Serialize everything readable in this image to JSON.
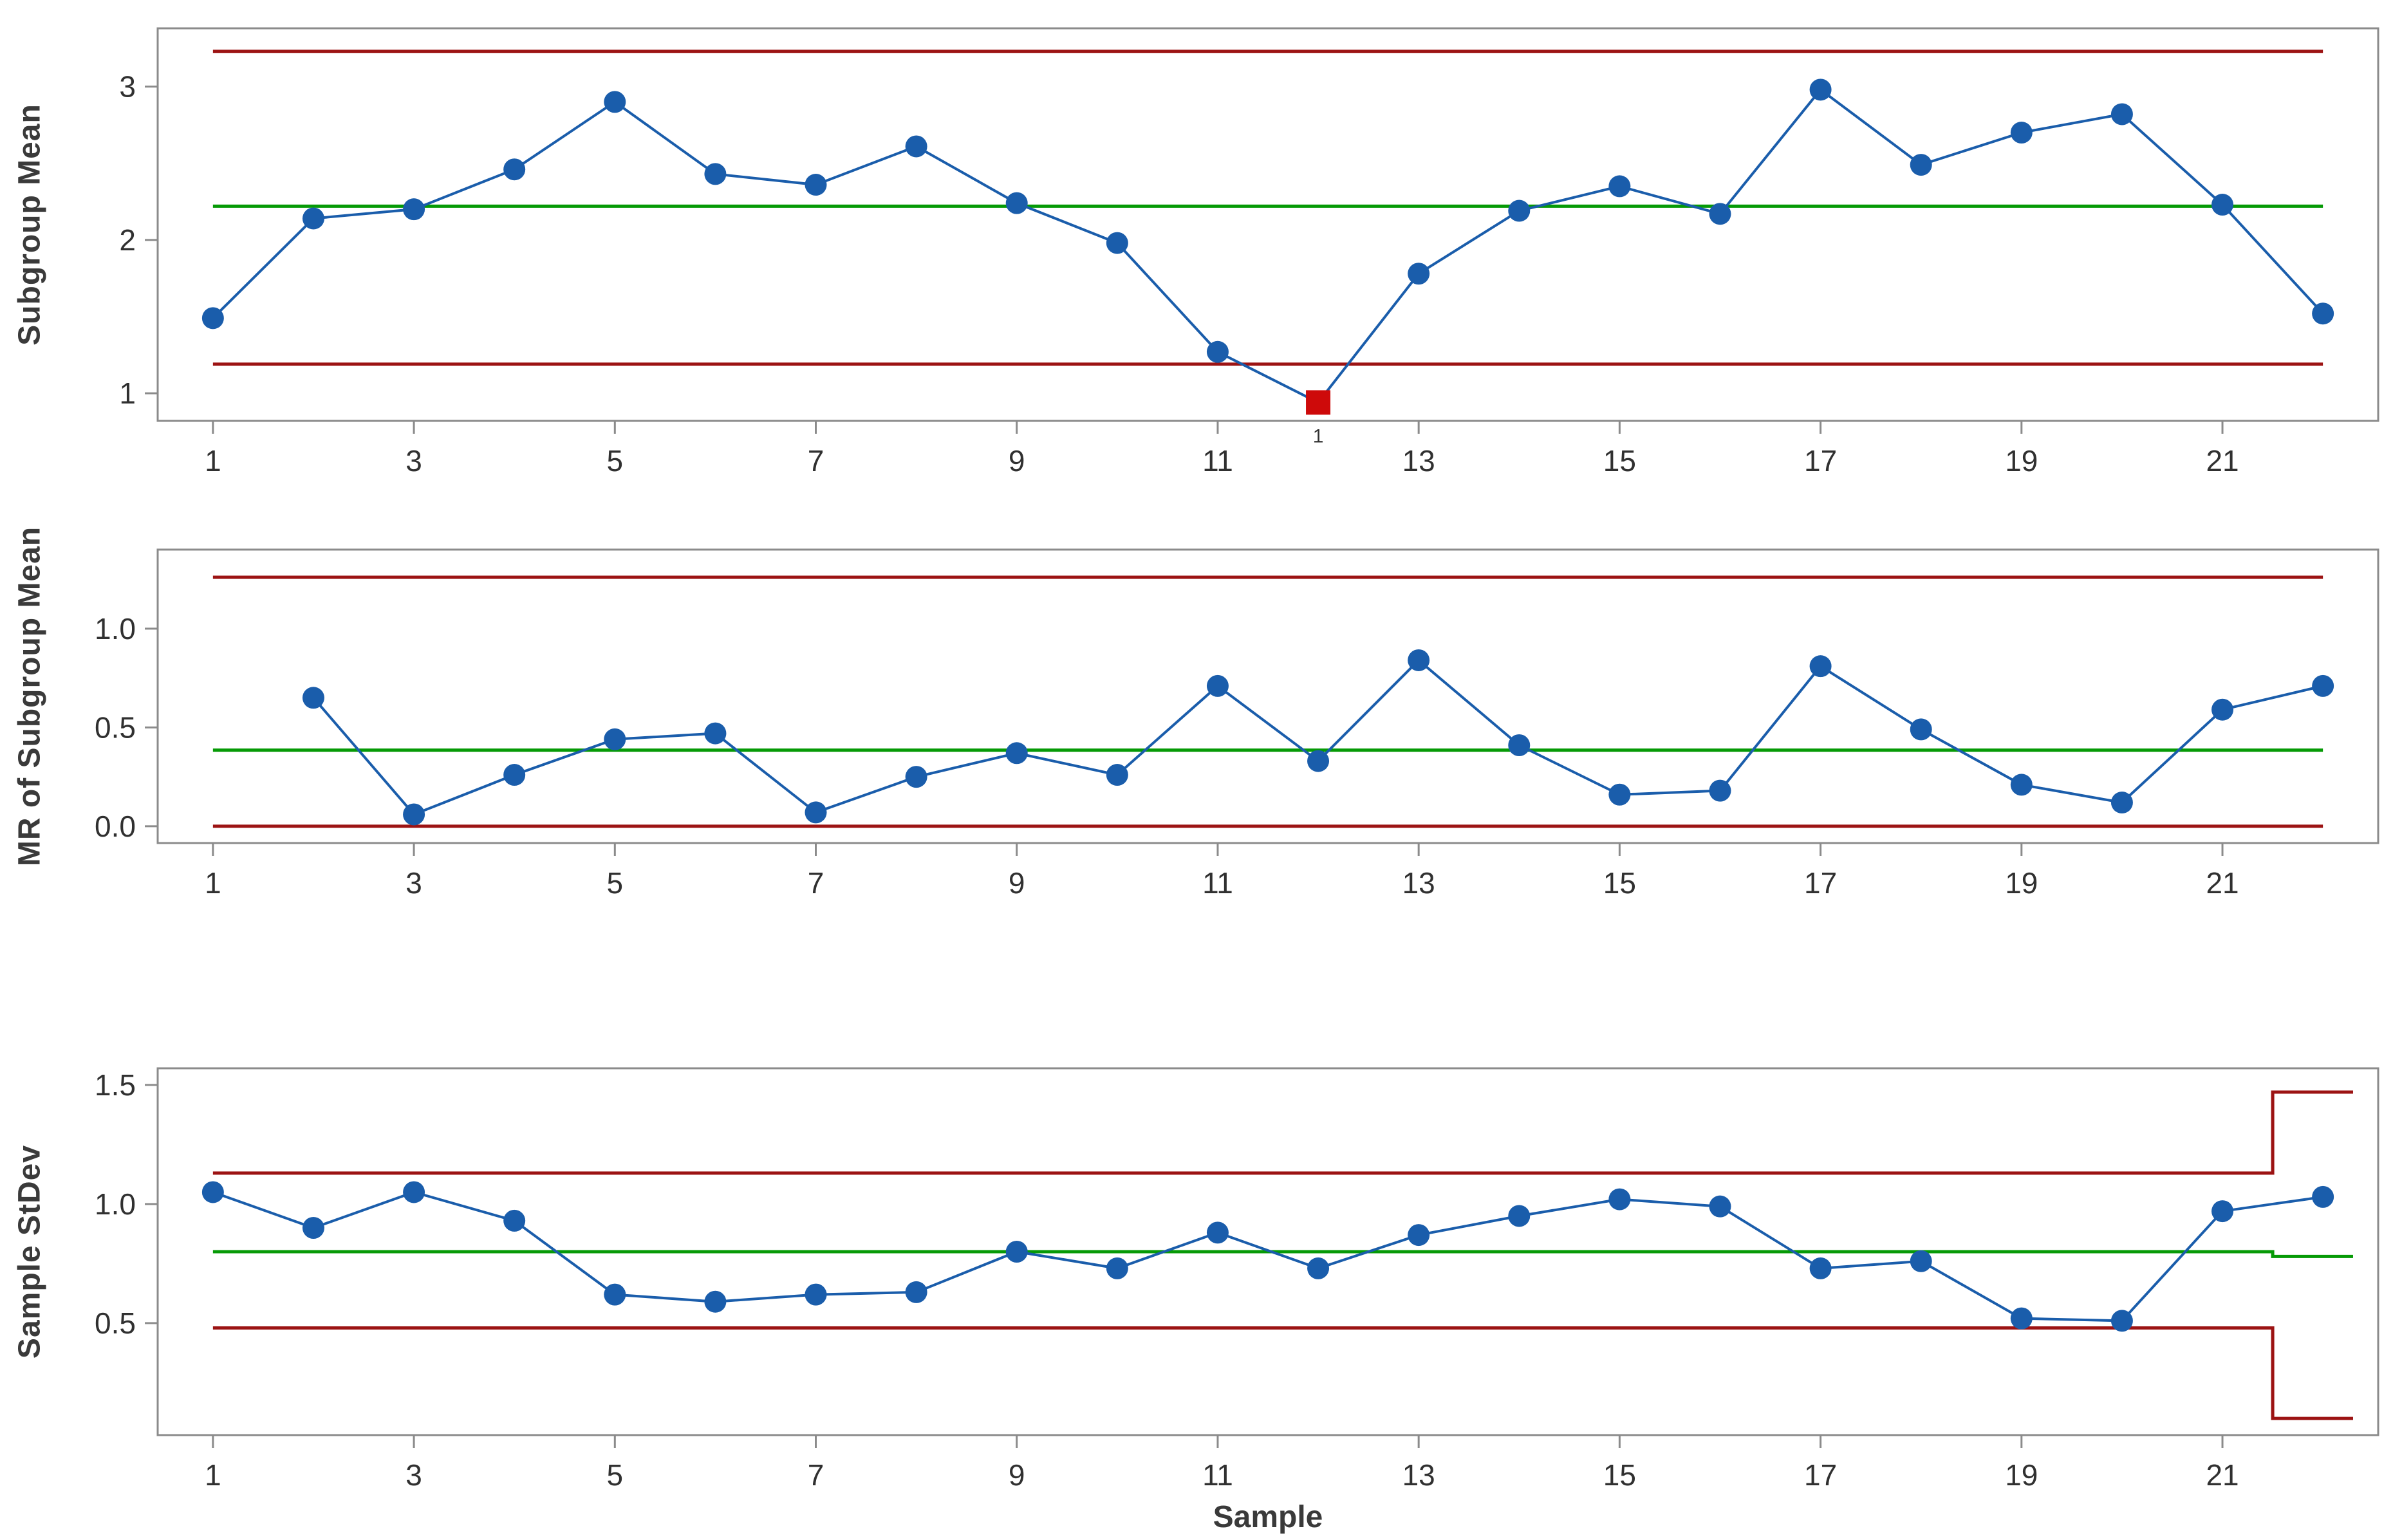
{
  "figure": {
    "xlabel": "Sample",
    "xlim": [
      0.45,
      22.55
    ],
    "x_ticks": [
      1,
      3,
      5,
      7,
      9,
      11,
      13,
      15,
      17,
      19,
      21
    ],
    "samples": [
      1,
      2,
      3,
      4,
      5,
      6,
      7,
      8,
      9,
      10,
      11,
      12,
      13,
      14,
      15,
      16,
      17,
      18,
      19,
      20,
      21,
      22
    ]
  },
  "style": {
    "series_color": "#1A5DAB",
    "limit_color": "#9C1313",
    "center_color": "#069A06",
    "frame_color": "#8B8B8B",
    "text_color": "#303030",
    "oos_color": "#CE0A0A"
  },
  "chart_data": [
    {
      "type": "line",
      "ylabel": "Subgroup Mean",
      "ylim": [
        0.82,
        3.38
      ],
      "yticks": [
        {
          "v": 1,
          "label": "1"
        },
        {
          "v": 2,
          "label": "2"
        },
        {
          "v": 3,
          "label": "3"
        }
      ],
      "values": [
        1.49,
        2.14,
        2.2,
        2.46,
        2.9,
        2.43,
        2.36,
        2.61,
        2.24,
        1.98,
        1.27,
        0.94,
        1.78,
        2.19,
        2.35,
        2.17,
        2.98,
        2.49,
        2.7,
        2.82,
        2.23,
        1.52
      ],
      "lines": [
        {
          "name": "ucl-line",
          "kind": "limit",
          "points": [
            [
              1,
              3.23
            ],
            [
              22,
              3.23
            ]
          ]
        },
        {
          "name": "center-line",
          "kind": "center",
          "points": [
            [
              1,
              2.22
            ],
            [
              22,
              2.22
            ]
          ]
        },
        {
          "name": "lcl-line",
          "kind": "limit",
          "points": [
            [
              1,
              1.19
            ],
            [
              22,
              1.19
            ]
          ]
        }
      ],
      "special_points": [
        {
          "sample": 12,
          "marker": "square",
          "label": "1"
        }
      ]
    },
    {
      "type": "line",
      "ylabel": "MR of Subgroup Mean",
      "ylim": [
        -0.085,
        1.4
      ],
      "yticks": [
        {
          "v": 0.0,
          "label": "0.0"
        },
        {
          "v": 0.5,
          "label": "0.5"
        },
        {
          "v": 1.0,
          "label": "1.0"
        }
      ],
      "values": [
        null,
        0.65,
        0.06,
        0.26,
        0.44,
        0.47,
        0.07,
        0.25,
        0.37,
        0.26,
        0.71,
        0.33,
        0.84,
        0.41,
        0.16,
        0.18,
        0.81,
        0.49,
        0.21,
        0.12,
        0.59,
        0.71
      ],
      "lines": [
        {
          "name": "ucl-line",
          "kind": "limit",
          "points": [
            [
              1,
              1.26
            ],
            [
              22,
              1.26
            ]
          ]
        },
        {
          "name": "center-line",
          "kind": "center",
          "points": [
            [
              1,
              0.385
            ],
            [
              22,
              0.385
            ]
          ]
        },
        {
          "name": "lcl-line",
          "kind": "limit",
          "points": [
            [
              1,
              0.0
            ],
            [
              22,
              0.0
            ]
          ]
        }
      ],
      "special_points": []
    },
    {
      "type": "line",
      "ylabel": "Sample StDev",
      "ylim": [
        0.03,
        1.57
      ],
      "yticks": [
        {
          "v": 0.5,
          "label": "0.5"
        },
        {
          "v": 1.0,
          "label": "1.0"
        },
        {
          "v": 1.5,
          "label": "1.5"
        }
      ],
      "values": [
        1.05,
        0.9,
        1.05,
        0.93,
        0.62,
        0.59,
        0.62,
        0.63,
        0.8,
        0.73,
        0.88,
        0.73,
        0.87,
        0.95,
        1.02,
        0.99,
        0.73,
        0.76,
        0.52,
        0.51,
        0.97,
        1.03
      ],
      "lines": [
        {
          "name": "ucl-line",
          "kind": "limit",
          "points": [
            [
              1,
              1.13
            ],
            [
              21.5,
              1.13
            ],
            [
              21.5,
              1.47
            ],
            [
              22.3,
              1.47
            ]
          ]
        },
        {
          "name": "center-line",
          "kind": "center",
          "points": [
            [
              1,
              0.8
            ],
            [
              21.5,
              0.8
            ],
            [
              21.5,
              0.78
            ],
            [
              22.3,
              0.78
            ]
          ]
        },
        {
          "name": "lcl-line",
          "kind": "limit",
          "points": [
            [
              1,
              0.48
            ],
            [
              21.5,
              0.48
            ],
            [
              21.5,
              0.1
            ],
            [
              22.3,
              0.1
            ]
          ]
        }
      ],
      "special_points": []
    }
  ]
}
